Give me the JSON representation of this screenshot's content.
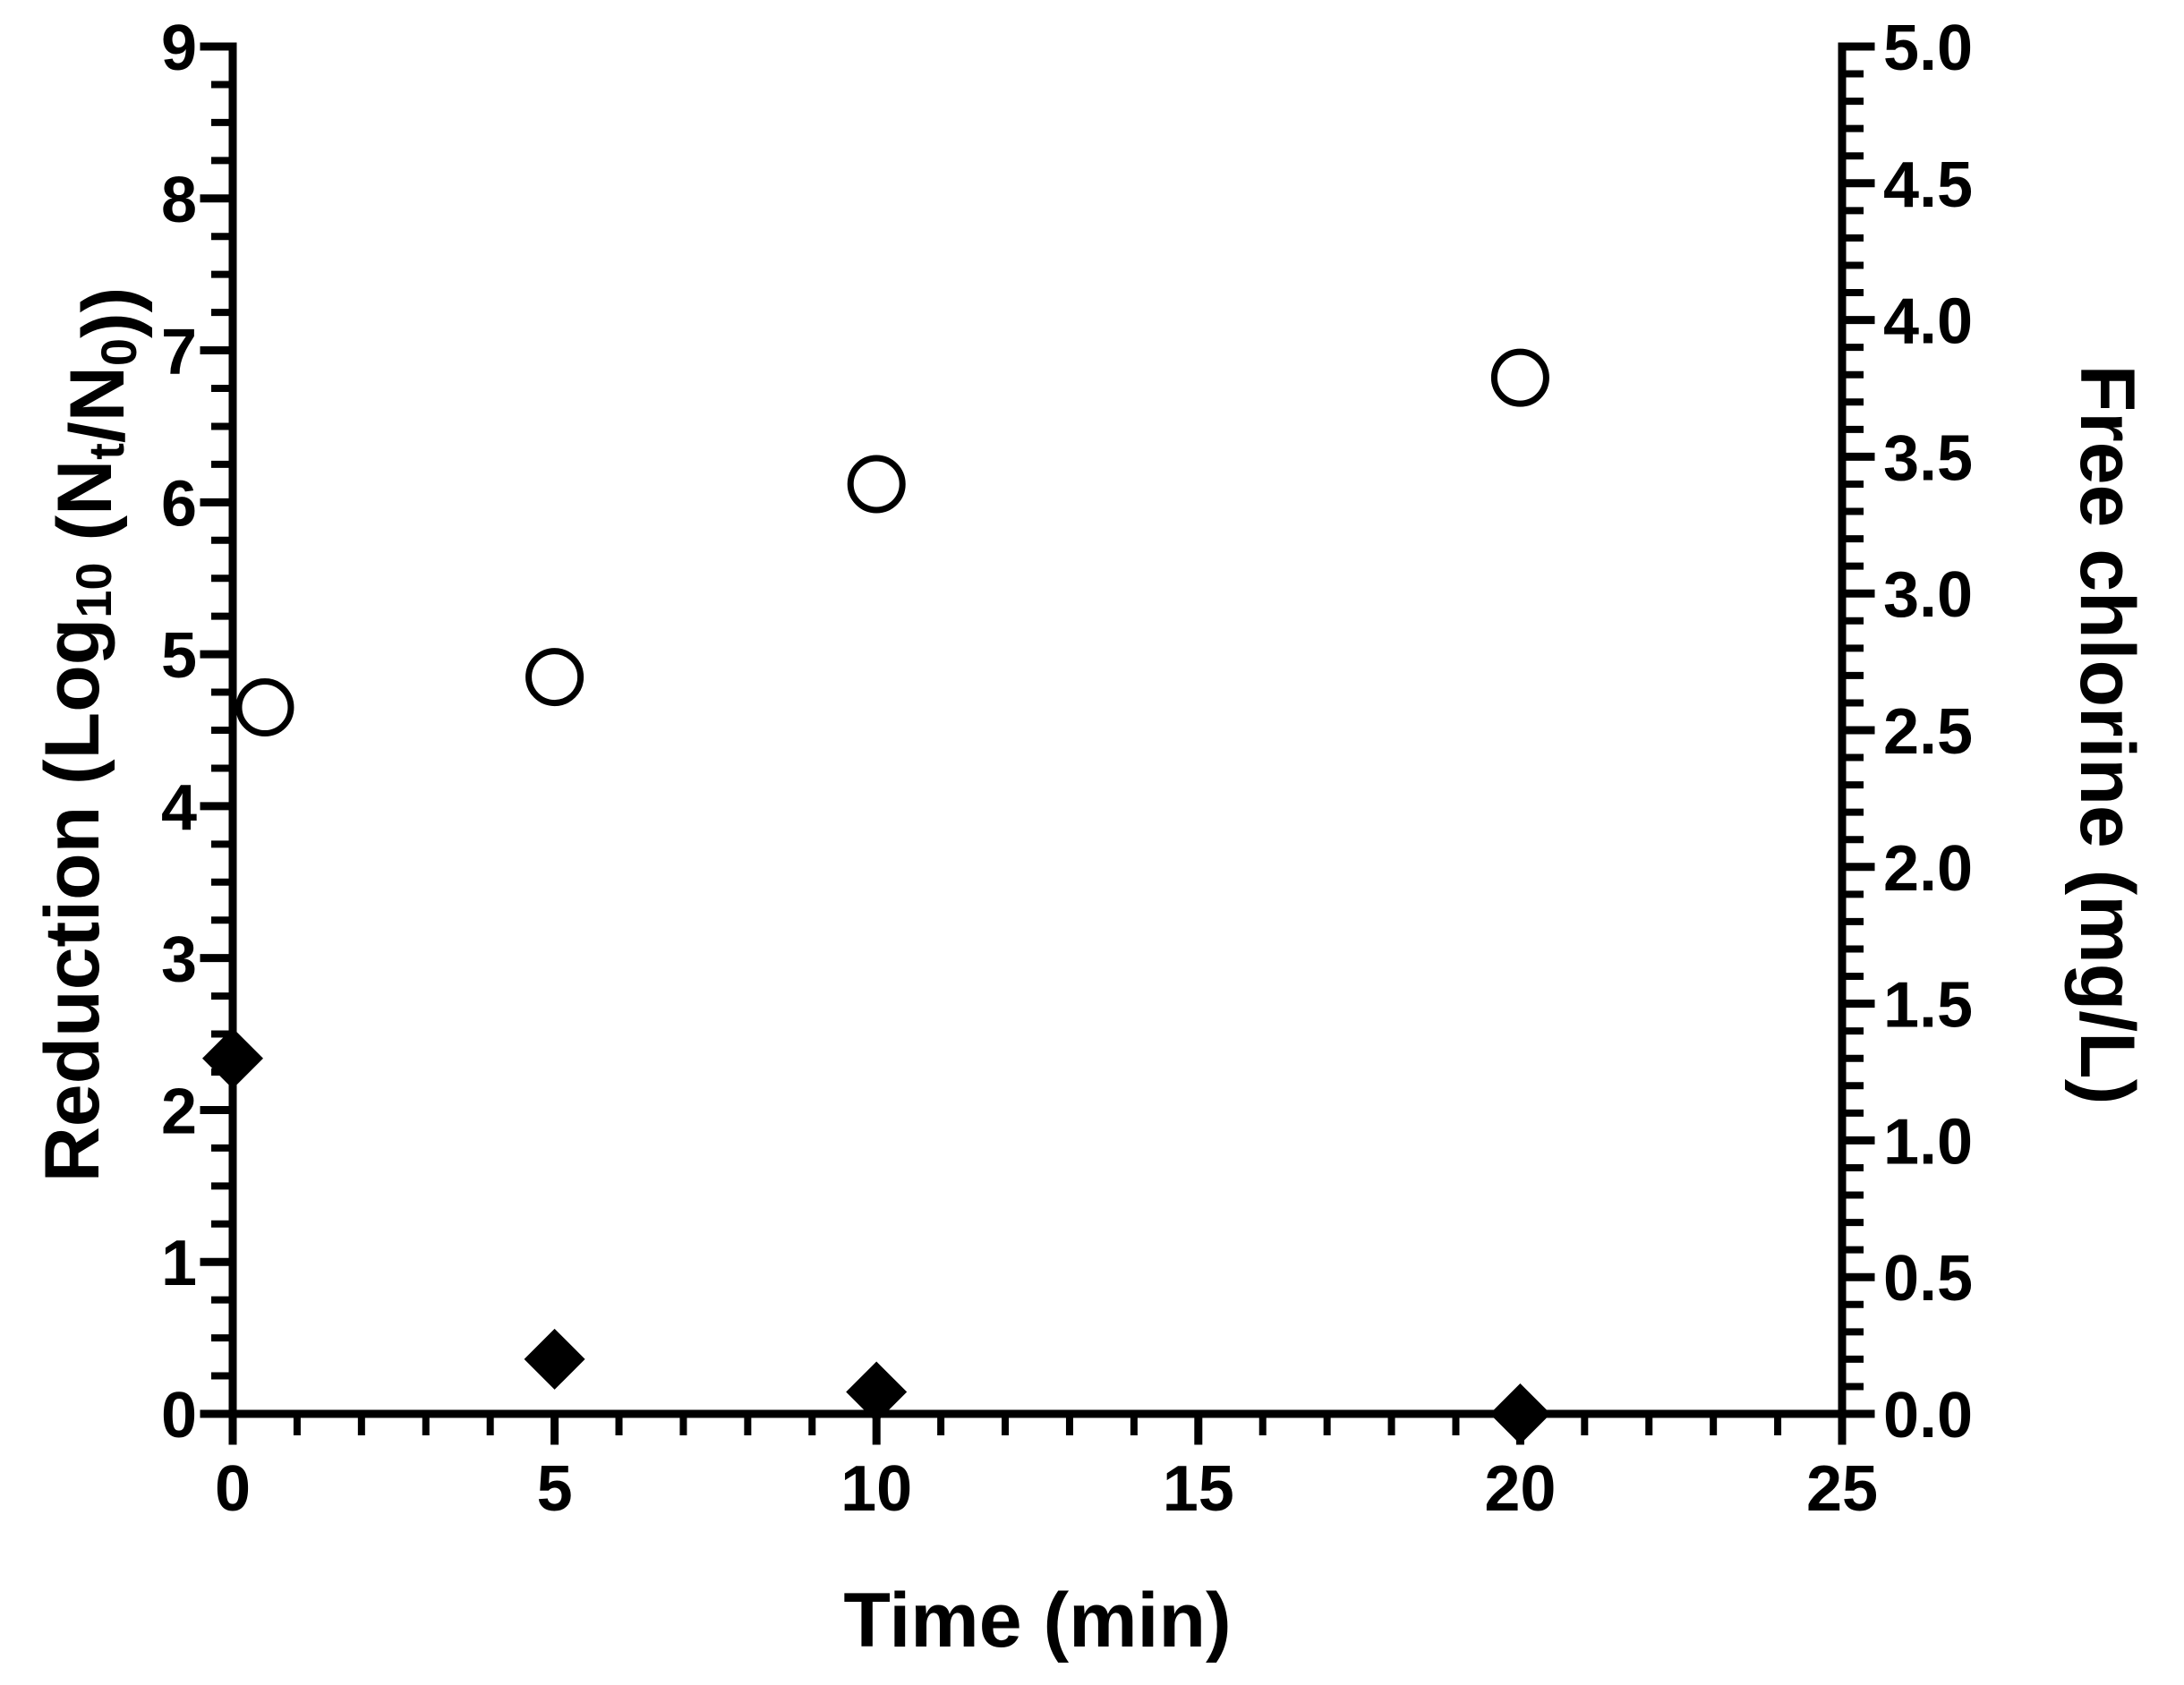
{
  "chart_data": {
    "type": "scatter",
    "xlabel": "Time (min)",
    "ylabel_left": {
      "parts": [
        {
          "t": "Reduction (Log"
        },
        {
          "t": "10",
          "sub": true
        },
        {
          "t": " (N"
        },
        {
          "t": "t",
          "sub": true
        },
        {
          "t": "/N"
        },
        {
          "t": "0",
          "sub": true
        },
        {
          "t": "))"
        }
      ]
    },
    "ylabel_right": "Free chlorine (mg/L)",
    "xlim": [
      0,
      25
    ],
    "ylim_left": [
      0,
      9
    ],
    "ylim_right": [
      0,
      5.0
    ],
    "x_ticks": [
      "0",
      "5",
      "10",
      "15",
      "20",
      "25"
    ],
    "y_left_ticks": [
      "0",
      "1",
      "2",
      "3",
      "4",
      "5",
      "6",
      "7",
      "8",
      "9"
    ],
    "y_right_ticks": [
      "0.0",
      "0.5",
      "1.0",
      "1.5",
      "2.0",
      "2.5",
      "3.0",
      "3.5",
      "4.0",
      "4.5",
      "5.0"
    ],
    "grid": false,
    "series": [
      {
        "axis": "left",
        "marker": "open-circle",
        "points": [
          {
            "x": 0.5,
            "y": 4.65
          },
          {
            "x": 5,
            "y": 4.85
          },
          {
            "x": 10,
            "y": 6.12
          },
          {
            "x": 20,
            "y": 6.82
          }
        ]
      },
      {
        "axis": "right",
        "marker": "filled-diamond",
        "points": [
          {
            "x": 0,
            "y": 1.3
          },
          {
            "x": 5,
            "y": 0.2
          },
          {
            "x": 10,
            "y": 0.08
          },
          {
            "x": 20,
            "y": 0.0
          }
        ]
      }
    ]
  }
}
